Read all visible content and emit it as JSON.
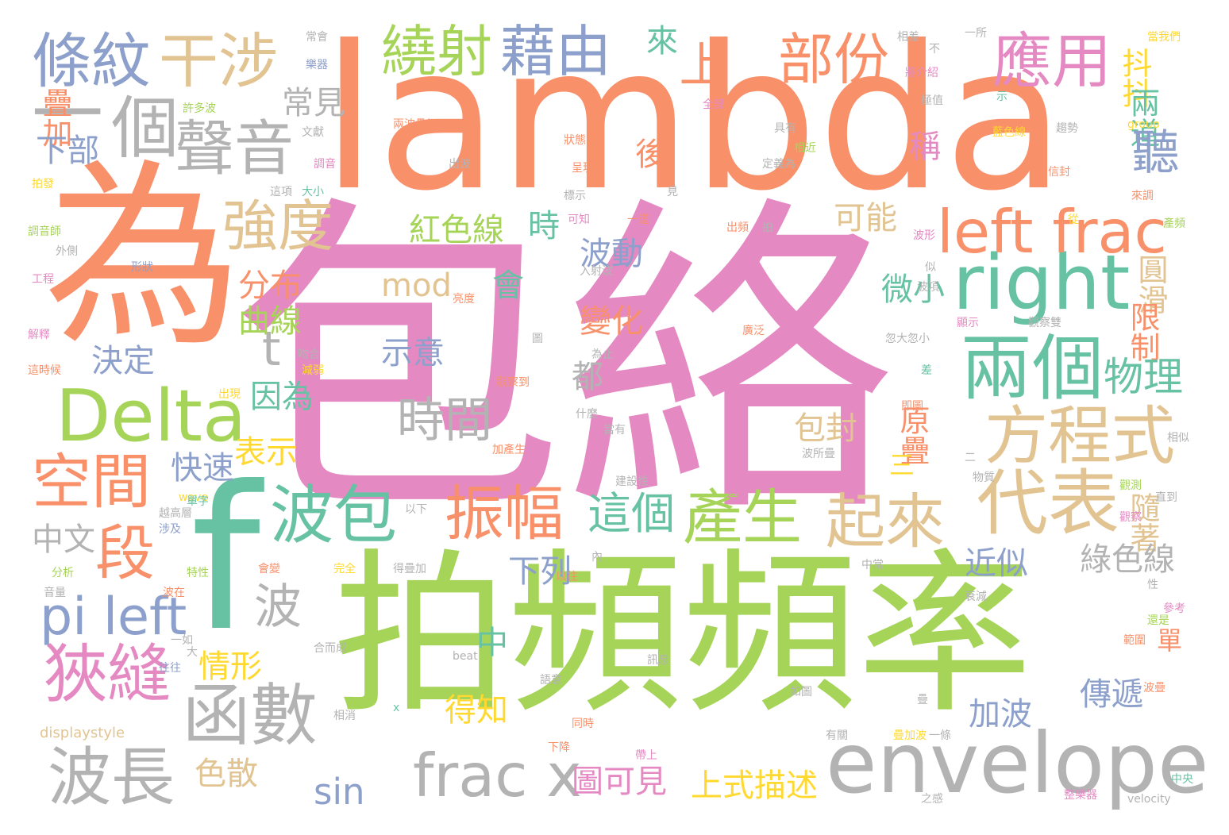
{
  "palette": {
    "orange": "#f8906a",
    "pink": "#e589c3",
    "green": "#a6d458",
    "teal": "#66c2a3",
    "blue": "#8da0cb",
    "tan": "#e2c492",
    "gray": "#b3b3b3",
    "yellow": "#ffd92f"
  },
  "words": [
    {
      "text": "lambda",
      "color": "orange"
    },
    {
      "text": "包絡",
      "color": "pink"
    },
    {
      "text": "拍頻頻率",
      "color": "green"
    },
    {
      "text": "為",
      "color": "orange"
    },
    {
      "text": "f",
      "color": "teal"
    },
    {
      "text": "envelope",
      "color": "gray"
    },
    {
      "text": "Delta",
      "color": "green"
    },
    {
      "text": "right",
      "color": "teal"
    },
    {
      "text": "left frac",
      "color": "orange"
    },
    {
      "text": "條紋",
      "color": "blue"
    },
    {
      "text": "干涉",
      "color": "tan"
    },
    {
      "text": "繞射",
      "color": "green"
    },
    {
      "text": "藉由",
      "color": "blue"
    },
    {
      "text": "部份",
      "color": "orange"
    },
    {
      "text": "應用",
      "color": "pink"
    },
    {
      "text": "個",
      "color": "gray"
    },
    {
      "text": "聲音",
      "color": "gray"
    },
    {
      "text": "一",
      "color": "gray"
    },
    {
      "text": "兩個",
      "color": "teal"
    },
    {
      "text": "方程式",
      "color": "tan"
    },
    {
      "text": "代表",
      "color": "tan"
    },
    {
      "text": "起來",
      "color": "tan"
    },
    {
      "text": "空間",
      "color": "orange"
    },
    {
      "text": "段",
      "color": "orange"
    },
    {
      "text": "狹縫",
      "color": "pink"
    },
    {
      "text": "函數",
      "color": "gray"
    },
    {
      "text": "波長",
      "color": "gray"
    },
    {
      "text": "波包",
      "color": "teal"
    },
    {
      "text": "振幅",
      "color": "orange"
    },
    {
      "text": "產生",
      "color": "green"
    },
    {
      "text": "pi left",
      "color": "blue"
    },
    {
      "text": "frac x",
      "color": "gray"
    },
    {
      "text": "時間",
      "color": "gray"
    },
    {
      "text": "強度",
      "color": "tan"
    },
    {
      "text": "t",
      "color": "gray"
    },
    {
      "text": "上",
      "color": "orange"
    },
    {
      "text": "來",
      "color": "teal"
    },
    {
      "text": "抖抖",
      "color": "yellow"
    },
    {
      "text": "兩道",
      "color": "teal"
    },
    {
      "text": "疊加",
      "color": "orange"
    },
    {
      "text": "下部",
      "color": "blue"
    },
    {
      "text": "常見",
      "color": "gray"
    },
    {
      "text": "後",
      "color": "orange"
    },
    {
      "text": "稱",
      "color": "pink"
    },
    {
      "text": "聽",
      "color": "blue"
    },
    {
      "text": "紅色線",
      "color": "green"
    },
    {
      "text": "時",
      "color": "teal"
    },
    {
      "text": "可能",
      "color": "tan"
    },
    {
      "text": "波動",
      "color": "blue"
    },
    {
      "text": "分布",
      "color": "orange"
    },
    {
      "text": "曲線",
      "color": "green"
    },
    {
      "text": "mod",
      "color": "tan"
    },
    {
      "text": "會",
      "color": "teal"
    },
    {
      "text": "變化",
      "color": "orange"
    },
    {
      "text": "微小",
      "color": "teal"
    },
    {
      "text": "圓滑",
      "color": "tan"
    },
    {
      "text": "限制",
      "color": "orange"
    },
    {
      "text": "物理",
      "color": "teal"
    },
    {
      "text": "示意",
      "color": "blue"
    },
    {
      "text": "決定",
      "color": "blue"
    },
    {
      "text": "都",
      "color": "gray"
    },
    {
      "text": "因為",
      "color": "teal"
    },
    {
      "text": "原疊",
      "color": "orange"
    },
    {
      "text": "包封",
      "color": "tan"
    },
    {
      "text": "表示",
      "color": "yellow"
    },
    {
      "text": "快速",
      "color": "blue"
    },
    {
      "text": "三",
      "color": "yellow"
    },
    {
      "text": "這個",
      "color": "teal"
    },
    {
      "text": "隨著",
      "color": "tan"
    },
    {
      "text": "中文",
      "color": "gray"
    },
    {
      "text": "近似",
      "color": "blue"
    },
    {
      "text": "綠色線",
      "color": "gray"
    },
    {
      "text": "下列",
      "color": "blue"
    },
    {
      "text": "波",
      "color": "gray"
    },
    {
      "text": "情形",
      "color": "yellow"
    },
    {
      "text": "中",
      "color": "teal"
    },
    {
      "text": "單",
      "color": "orange"
    },
    {
      "text": "傳遞",
      "color": "blue"
    },
    {
      "text": "得知",
      "color": "yellow"
    },
    {
      "text": "加波",
      "color": "blue"
    },
    {
      "text": "色散",
      "color": "tan"
    },
    {
      "text": "sin",
      "color": "blue"
    },
    {
      "text": "圖可見",
      "color": "pink"
    },
    {
      "text": "上式描述",
      "color": "yellow"
    },
    {
      "text": "常會",
      "color": "gray"
    },
    {
      "text": "樂器",
      "color": "blue"
    },
    {
      "text": "相差",
      "color": "gray"
    },
    {
      "text": "不",
      "color": "gray"
    },
    {
      "text": "一所",
      "color": "gray"
    },
    {
      "text": "當我們",
      "color": "yellow"
    },
    {
      "text": "將介紹",
      "color": "pink"
    },
    {
      "text": "極值",
      "color": "gray"
    },
    {
      "text": "示",
      "color": "teal"
    },
    {
      "text": "許多波",
      "color": "green"
    },
    {
      "text": "全部",
      "color": "pink"
    },
    {
      "text": "文獻",
      "color": "gray"
    },
    {
      "text": "兩波疊加",
      "color": "orange"
    },
    {
      "text": "具有",
      "color": "gray"
    },
    {
      "text": "藍色線",
      "color": "yellow"
    },
    {
      "text": "趨勢",
      "color": "gray"
    },
    {
      "text": "group",
      "color": "yellow"
    },
    {
      "text": "狀態",
      "color": "orange"
    },
    {
      "text": "相近",
      "color": "green"
    },
    {
      "text": "出波",
      "color": "gray"
    },
    {
      "text": "呈現",
      "color": "orange"
    },
    {
      "text": "定義為",
      "color": "gray"
    },
    {
      "text": "調音",
      "color": "pink"
    },
    {
      "text": "信封",
      "color": "orange"
    },
    {
      "text": "拍發",
      "color": "yellow"
    },
    {
      "text": "這項",
      "color": "gray"
    },
    {
      "text": "大小",
      "color": "teal"
    },
    {
      "text": "標示",
      "color": "gray"
    },
    {
      "text": "見",
      "color": "gray"
    },
    {
      "text": "來調",
      "color": "orange"
    },
    {
      "text": "產頻",
      "color": "green"
    },
    {
      "text": "可知",
      "color": "pink"
    },
    {
      "text": "一道",
      "color": "orange"
    },
    {
      "text": "調音師",
      "color": "green"
    },
    {
      "text": "出頻",
      "color": "orange"
    },
    {
      "text": "拍",
      "color": "gray"
    },
    {
      "text": "從",
      "color": "yellow"
    },
    {
      "text": "波形",
      "color": "pink"
    },
    {
      "text": "外側",
      "color": "gray"
    },
    {
      "text": "形狀",
      "color": "blue"
    },
    {
      "text": "工程",
      "color": "pink"
    },
    {
      "text": "入射波",
      "color": "gray"
    },
    {
      "text": "似",
      "color": "gray"
    },
    {
      "text": "波項",
      "color": "gray"
    },
    {
      "text": "亮度",
      "color": "orange"
    },
    {
      "text": "顯示",
      "color": "pink"
    },
    {
      "text": "觀察雙",
      "color": "gray"
    },
    {
      "text": "解釋",
      "color": "pink"
    },
    {
      "text": "圖",
      "color": "gray"
    },
    {
      "text": "廣泛",
      "color": "orange"
    },
    {
      "text": "忽大忽小",
      "color": "gray"
    },
    {
      "text": "為止",
      "color": "gray"
    },
    {
      "text": "吻合",
      "color": "gray"
    },
    {
      "text": "這時候",
      "color": "orange"
    },
    {
      "text": "減弱",
      "color": "yellow"
    },
    {
      "text": "觀察到",
      "color": "orange"
    },
    {
      "text": "差",
      "color": "teal"
    },
    {
      "text": "出現",
      "color": "yellow"
    },
    {
      "text": "即圖",
      "color": "orange"
    },
    {
      "text": "什麼",
      "color": "gray"
    },
    {
      "text": "當有",
      "color": "gray"
    },
    {
      "text": "相似",
      "color": "gray"
    },
    {
      "text": "加產生",
      "color": "orange"
    },
    {
      "text": "波所疊",
      "color": "gray"
    },
    {
      "text": "二",
      "color": "gray"
    },
    {
      "text": "物質",
      "color": "gray"
    },
    {
      "text": "建設性",
      "color": "gray"
    },
    {
      "text": "這也",
      "color": "pink"
    },
    {
      "text": "觀測",
      "color": "green"
    },
    {
      "text": "直到",
      "color": "gray"
    },
    {
      "text": "wave",
      "color": "yellow"
    },
    {
      "text": "以下",
      "color": "gray"
    },
    {
      "text": "越高層",
      "color": "gray"
    },
    {
      "text": "單字",
      "color": "teal"
    },
    {
      "text": "觀察",
      "color": "pink"
    },
    {
      "text": "涉及",
      "color": "blue"
    },
    {
      "text": "內",
      "color": "gray"
    },
    {
      "text": "分析",
      "color": "green"
    },
    {
      "text": "特性",
      "color": "green"
    },
    {
      "text": "會變",
      "color": "orange"
    },
    {
      "text": "完全",
      "color": "yellow"
    },
    {
      "text": "得疊加",
      "color": "gray"
    },
    {
      "text": "中常",
      "color": "gray"
    },
    {
      "text": "以往",
      "color": "orange"
    },
    {
      "text": "性",
      "color": "gray"
    },
    {
      "text": "音量",
      "color": "gray"
    },
    {
      "text": "波在",
      "color": "orange"
    },
    {
      "text": "衰減",
      "color": "gray"
    },
    {
      "text": "參考",
      "color": "pink"
    },
    {
      "text": "還是",
      "color": "green"
    },
    {
      "text": "一如",
      "color": "gray"
    },
    {
      "text": "生活",
      "color": "green"
    },
    {
      "text": "範圍",
      "color": "orange"
    },
    {
      "text": "大",
      "color": "gray"
    },
    {
      "text": "beat",
      "color": "gray"
    },
    {
      "text": "往往",
      "color": "blue"
    },
    {
      "text": "合而成",
      "color": "gray"
    },
    {
      "text": "訊息",
      "color": "gray"
    },
    {
      "text": "語意",
      "color": "gray"
    },
    {
      "text": "如圖",
      "color": "gray"
    },
    {
      "text": "波疊",
      "color": "orange"
    },
    {
      "text": "疊",
      "color": "gray"
    },
    {
      "text": "x",
      "color": "teal"
    },
    {
      "text": "相消",
      "color": "gray"
    },
    {
      "text": "同時",
      "color": "orange"
    },
    {
      "text": "displaystyle",
      "color": "tan"
    },
    {
      "text": "有關",
      "color": "gray"
    },
    {
      "text": "疊加波",
      "color": "yellow"
    },
    {
      "text": "一條",
      "color": "gray"
    },
    {
      "text": "下降",
      "color": "orange"
    },
    {
      "text": "帶上",
      "color": "pink"
    },
    {
      "text": "中央",
      "color": "teal"
    },
    {
      "text": "之感",
      "color": "gray"
    },
    {
      "text": "整樂器",
      "color": "pink"
    },
    {
      "text": "velocity",
      "color": "gray"
    }
  ]
}
